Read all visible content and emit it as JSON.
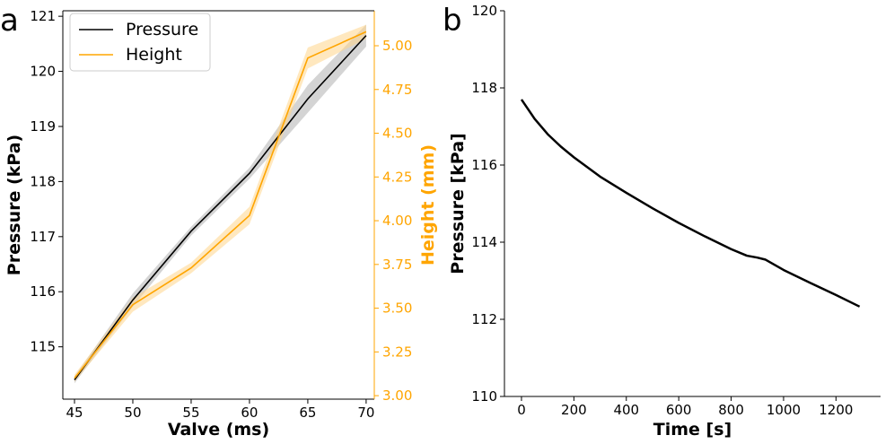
{
  "colors": {
    "pressure": "#000000",
    "height": "#ffa500",
    "band_pressure": "#b0b0b0",
    "band_height": "#ffd58a"
  },
  "chart_data": [
    {
      "panel_label": "a",
      "type": "line",
      "xlabel": "Valve (ms)",
      "ylabel_left": "Pressure (kPa)",
      "ylabel_right": "Height (mm)",
      "x": [
        45,
        50,
        55,
        60,
        65,
        70
      ],
      "x_ticks": [
        "45",
        "50",
        "55",
        "60",
        "65",
        "70"
      ],
      "xlim": [
        44,
        70.7
      ],
      "ylim_left": [
        114.05,
        121.1
      ],
      "ylim_right": [
        2.98,
        5.2
      ],
      "y_ticks_left": [
        "115",
        "116",
        "117",
        "118",
        "119",
        "120",
        "121"
      ],
      "y_ticks_right": [
        "3.00",
        "3.25",
        "3.50",
        "3.75",
        "4.00",
        "4.25",
        "4.50",
        "4.75",
        "5.00"
      ],
      "legend": {
        "position": "top-left",
        "entries": [
          "Pressure",
          "Height"
        ]
      },
      "series": [
        {
          "name": "Pressure",
          "axis": "left",
          "values": [
            114.4,
            115.85,
            117.1,
            118.15,
            119.5,
            120.65
          ],
          "band": [
            0.06,
            0.12,
            0.08,
            0.1,
            0.25,
            0.2
          ]
        },
        {
          "name": "Height",
          "axis": "right",
          "values": [
            3.1,
            3.52,
            3.73,
            4.03,
            4.93,
            5.08
          ],
          "band": [
            0.02,
            0.04,
            0.03,
            0.05,
            0.06,
            0.04
          ]
        }
      ]
    },
    {
      "panel_label": "b",
      "type": "line",
      "xlabel": "Time [s]",
      "ylabel": "Pressure [kPa]",
      "x_ticks": [
        "0",
        "200",
        "400",
        "600",
        "800",
        "1000",
        "1200"
      ],
      "y_ticks": [
        "110",
        "112",
        "114",
        "116",
        "118",
        "120"
      ],
      "xlim": [
        -65,
        1370
      ],
      "ylim": [
        110,
        120
      ],
      "series": [
        {
          "name": "Pressure",
          "x": [
            0,
            50,
            100,
            150,
            200,
            300,
            400,
            500,
            600,
            700,
            800,
            860,
            900,
            930,
            1000,
            1100,
            1200,
            1290
          ],
          "values": [
            117.7,
            117.2,
            116.8,
            116.48,
            116.2,
            115.7,
            115.28,
            114.88,
            114.5,
            114.15,
            113.82,
            113.65,
            113.6,
            113.55,
            113.28,
            112.95,
            112.63,
            112.33
          ]
        }
      ]
    }
  ]
}
